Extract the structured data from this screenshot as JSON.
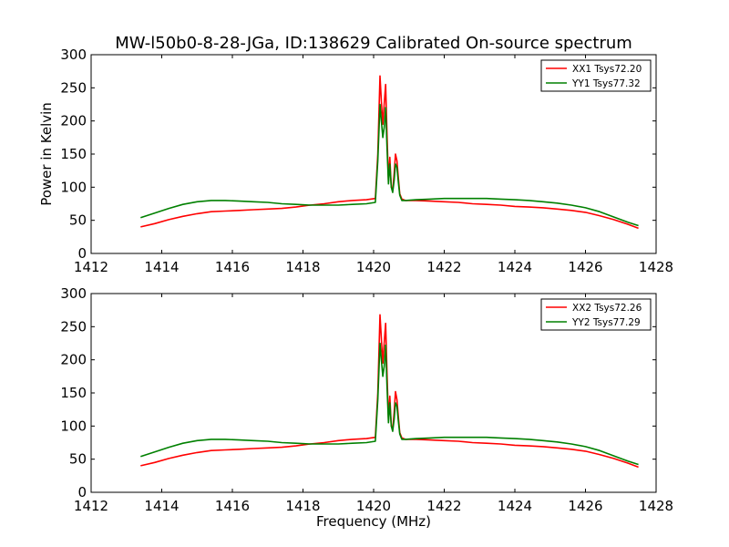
{
  "title": "MW-l50b0-8-28-JGa, ID:138629 Calibrated On-source spectrum",
  "chart_data": [
    {
      "type": "line",
      "ylabel": "Power in Kelvin",
      "xlabel": "",
      "xlim": [
        1412,
        1428
      ],
      "ylim": [
        0,
        300
      ],
      "xticks": [
        "1412",
        "1414",
        "1416",
        "1418",
        "1420",
        "1422",
        "1424",
        "1426",
        "1428"
      ],
      "yticks": [
        "0",
        "50",
        "100",
        "150",
        "200",
        "250",
        "300"
      ],
      "legend_position": "top-right",
      "series": [
        {
          "name": "XX1 Tsys72.20",
          "color": "#ff0000",
          "x": [
            1413.4,
            1413.8,
            1414.2,
            1414.6,
            1415.0,
            1415.4,
            1415.8,
            1416.2,
            1416.6,
            1417.0,
            1417.4,
            1417.8,
            1418.2,
            1418.6,
            1419.0,
            1419.4,
            1419.8,
            1420.05,
            1420.12,
            1420.18,
            1420.22,
            1420.26,
            1420.3,
            1420.34,
            1420.38,
            1420.42,
            1420.46,
            1420.5,
            1420.54,
            1420.58,
            1420.62,
            1420.66,
            1420.7,
            1420.74,
            1420.8,
            1420.9,
            1421.2,
            1421.6,
            1422.0,
            1422.4,
            1422.8,
            1423.2,
            1423.6,
            1424.0,
            1424.4,
            1424.8,
            1425.2,
            1425.6,
            1426.0,
            1426.4,
            1426.8,
            1427.2,
            1427.5
          ],
          "y": [
            40,
            45,
            51,
            56,
            60,
            63,
            64,
            65,
            66,
            67,
            68,
            70,
            73,
            75,
            78,
            80,
            81,
            83,
            150,
            268,
            230,
            195,
            225,
            255,
            180,
            110,
            145,
            100,
            95,
            120,
            150,
            140,
            115,
            90,
            82,
            80,
            80,
            79,
            78,
            77,
            75,
            74,
            73,
            71,
            70,
            69,
            67,
            65,
            62,
            57,
            51,
            44,
            38
          ]
        },
        {
          "name": "YY1 Tsys77.32",
          "color": "#008000",
          "x": [
            1413.4,
            1413.8,
            1414.2,
            1414.6,
            1415.0,
            1415.4,
            1415.8,
            1416.2,
            1416.6,
            1417.0,
            1417.4,
            1417.8,
            1418.2,
            1418.6,
            1419.0,
            1419.4,
            1419.8,
            1420.05,
            1420.12,
            1420.18,
            1420.22,
            1420.26,
            1420.3,
            1420.34,
            1420.38,
            1420.42,
            1420.46,
            1420.5,
            1420.54,
            1420.58,
            1420.62,
            1420.66,
            1420.7,
            1420.74,
            1420.8,
            1420.9,
            1421.2,
            1421.6,
            1422.0,
            1422.4,
            1422.8,
            1423.2,
            1423.6,
            1424.0,
            1424.4,
            1424.8,
            1425.2,
            1425.6,
            1426.0,
            1426.4,
            1426.8,
            1427.2,
            1427.5
          ],
          "y": [
            54,
            61,
            68,
            74,
            78,
            80,
            80,
            79,
            78,
            77,
            75,
            74,
            73,
            73,
            73,
            74,
            75,
            77,
            140,
            225,
            200,
            175,
            190,
            220,
            160,
            105,
            135,
            100,
            92,
            110,
            135,
            130,
            108,
            88,
            80,
            80,
            81,
            82,
            83,
            83,
            83,
            83,
            82,
            81,
            80,
            78,
            76,
            73,
            69,
            63,
            55,
            47,
            42
          ]
        }
      ]
    },
    {
      "type": "line",
      "ylabel": "",
      "xlabel": "Frequency (MHz)",
      "xlim": [
        1412,
        1428
      ],
      "ylim": [
        0,
        300
      ],
      "xticks": [
        "1412",
        "1414",
        "1416",
        "1418",
        "1420",
        "1422",
        "1424",
        "1426",
        "1428"
      ],
      "yticks": [
        "0",
        "50",
        "100",
        "150",
        "200",
        "250",
        "300"
      ],
      "legend_position": "top-right",
      "series": [
        {
          "name": "XX2 Tsys72.26",
          "color": "#ff0000",
          "x": [
            1413.4,
            1413.8,
            1414.2,
            1414.6,
            1415.0,
            1415.4,
            1415.8,
            1416.2,
            1416.6,
            1417.0,
            1417.4,
            1417.8,
            1418.2,
            1418.6,
            1419.0,
            1419.4,
            1419.8,
            1420.05,
            1420.12,
            1420.18,
            1420.22,
            1420.26,
            1420.3,
            1420.34,
            1420.38,
            1420.42,
            1420.46,
            1420.5,
            1420.54,
            1420.58,
            1420.62,
            1420.66,
            1420.7,
            1420.74,
            1420.8,
            1420.9,
            1421.2,
            1421.6,
            1422.0,
            1422.4,
            1422.8,
            1423.2,
            1423.6,
            1424.0,
            1424.4,
            1424.8,
            1425.2,
            1425.6,
            1426.0,
            1426.4,
            1426.8,
            1427.2,
            1427.5
          ],
          "y": [
            40,
            45,
            51,
            56,
            60,
            63,
            64,
            65,
            66,
            67,
            68,
            70,
            73,
            75,
            78,
            80,
            81,
            83,
            150,
            268,
            232,
            195,
            225,
            255,
            180,
            110,
            145,
            100,
            95,
            120,
            152,
            140,
            115,
            90,
            82,
            80,
            80,
            79,
            78,
            77,
            75,
            74,
            73,
            71,
            70,
            69,
            67,
            65,
            62,
            57,
            51,
            44,
            38
          ]
        },
        {
          "name": "YY2 Tsys77.29",
          "color": "#008000",
          "x": [
            1413.4,
            1413.8,
            1414.2,
            1414.6,
            1415.0,
            1415.4,
            1415.8,
            1416.2,
            1416.6,
            1417.0,
            1417.4,
            1417.8,
            1418.2,
            1418.6,
            1419.0,
            1419.4,
            1419.8,
            1420.05,
            1420.12,
            1420.18,
            1420.22,
            1420.26,
            1420.3,
            1420.34,
            1420.38,
            1420.42,
            1420.46,
            1420.5,
            1420.54,
            1420.58,
            1420.62,
            1420.66,
            1420.7,
            1420.74,
            1420.8,
            1420.9,
            1421.2,
            1421.6,
            1422.0,
            1422.4,
            1422.8,
            1423.2,
            1423.6,
            1424.0,
            1424.4,
            1424.8,
            1425.2,
            1425.6,
            1426.0,
            1426.4,
            1426.8,
            1427.2,
            1427.5
          ],
          "y": [
            54,
            61,
            68,
            74,
            78,
            80,
            80,
            79,
            78,
            77,
            75,
            74,
            73,
            73,
            73,
            74,
            75,
            77,
            140,
            225,
            200,
            175,
            190,
            222,
            160,
            105,
            135,
            100,
            92,
            110,
            135,
            130,
            108,
            88,
            80,
            80,
            81,
            82,
            83,
            83,
            83,
            83,
            82,
            81,
            80,
            78,
            76,
            73,
            69,
            63,
            55,
            47,
            42
          ]
        }
      ]
    }
  ]
}
